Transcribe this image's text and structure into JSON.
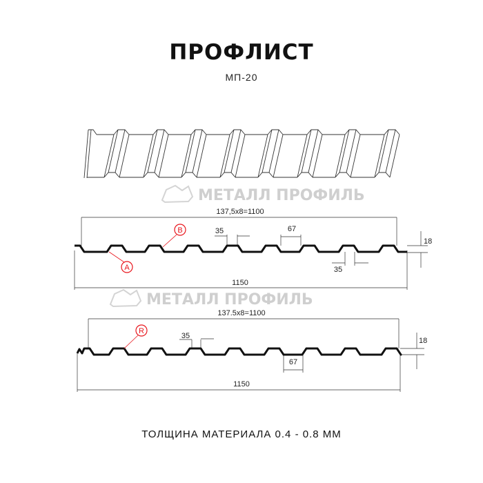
{
  "header": {
    "title": "ПРОФЛИСТ",
    "subtitle": "МП-20"
  },
  "watermark": {
    "text": "МЕТАЛЛ ПРОФИЛЬ"
  },
  "profile_a": {
    "pitch_label": "137,5x8=1100",
    "width_label": "1150",
    "rib_top_label": "35",
    "rib_bottom_label": "35",
    "trough_label": "67",
    "height_label": "18",
    "marker_a": "A",
    "marker_b": "B"
  },
  "profile_b": {
    "pitch_label": "137.5x8=1100",
    "width_label": "1150",
    "rib_top_label": "35",
    "trough_label": "67",
    "height_label": "18",
    "marker_r": "R"
  },
  "footer": {
    "text": "ТОЛЩИНА МАТЕРИАЛА 0.4 - 0.8 ММ"
  },
  "colors": {
    "marker": "#e8141b",
    "line": "#111111",
    "watermark": "#cfcfcf"
  }
}
